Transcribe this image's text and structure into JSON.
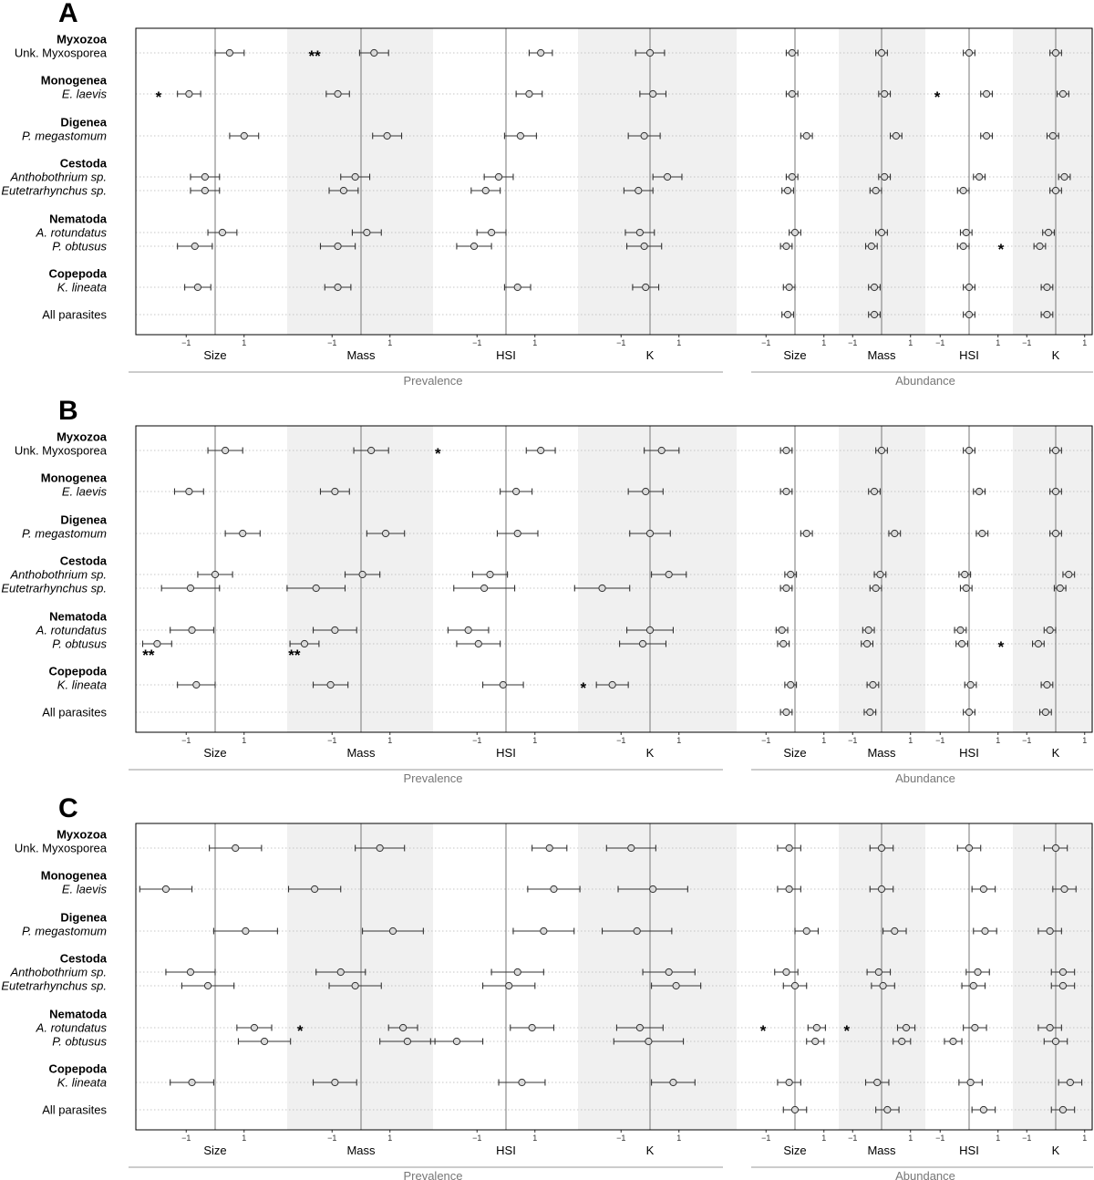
{
  "figure": {
    "groups": [
      "Myxozoa",
      "Monogenea",
      "Digenea",
      "Cestoda",
      "Nematoda",
      "Copepoda"
    ],
    "rows": [
      {
        "group": "Myxozoa",
        "label": "Unk. Myxosporea",
        "italic": false
      },
      {
        "group": "Monogenea",
        "label": "E. laevis",
        "italic": true
      },
      {
        "group": "Digenea",
        "label": "P. megastomum",
        "italic": true
      },
      {
        "group": "Cestoda",
        "label": "Anthobothrium sp.",
        "italic": true
      },
      {
        "group": "Cestoda",
        "label": "Eutetrarhynchus sp.",
        "italic": true
      },
      {
        "group": "Nematoda",
        "label": "A. rotundatus",
        "italic": true
      },
      {
        "group": "Nematoda",
        "label": "P. obtusus",
        "italic": true
      },
      {
        "group": "Copepoda",
        "label": "K. lineata",
        "italic": true
      },
      {
        "group": "",
        "label": "All parasites",
        "italic": false
      }
    ],
    "predictors": [
      "Size",
      "Mass",
      "HSI",
      "K"
    ],
    "sections": [
      "Prevalence",
      "Abundance"
    ],
    "tick_labels": [
      "−1",
      "1"
    ],
    "colors": {
      "shade": "#f0f0f0",
      "point_fill": "#d9d9d9",
      "stroke": "#333333",
      "zero_line": "#777777"
    }
  },
  "chart_data": [
    {
      "panel": "A",
      "type": "forest",
      "prevalence": {
        "Size": [
          [
            0.5,
            0.5
          ],
          [
            -0.9,
            0.4
          ],
          [
            1.0,
            0.5
          ],
          [
            -0.35,
            0.5
          ],
          [
            -0.35,
            0.5
          ],
          [
            0.25,
            0.5
          ],
          [
            -0.7,
            0.6
          ],
          [
            -0.6,
            0.45
          ],
          null
        ],
        "Mass": [
          [
            0.45,
            0.5
          ],
          [
            -0.8,
            0.4
          ],
          [
            0.9,
            0.5
          ],
          [
            -0.2,
            0.5
          ],
          [
            -0.6,
            0.5
          ],
          [
            0.2,
            0.5
          ],
          [
            -0.8,
            0.6
          ],
          [
            -0.8,
            0.45
          ],
          null
        ],
        "HSI": [
          [
            1.2,
            0.4
          ],
          [
            0.8,
            0.45
          ],
          [
            0.5,
            0.55
          ],
          [
            -0.25,
            0.5
          ],
          [
            -0.7,
            0.5
          ],
          [
            -0.5,
            0.5
          ],
          [
            -1.1,
            0.6
          ],
          [
            0.4,
            0.45
          ],
          null
        ],
        "K": [
          [
            0.0,
            0.5
          ],
          [
            0.1,
            0.45
          ],
          [
            -0.2,
            0.55
          ],
          [
            0.6,
            0.5
          ],
          [
            -0.4,
            0.5
          ],
          [
            -0.35,
            0.5
          ],
          [
            -0.2,
            0.6
          ],
          [
            -0.15,
            0.45
          ],
          null
        ]
      },
      "abundance": {
        "Size": [
          [
            -0.1,
            0.2
          ],
          [
            -0.1,
            0.2
          ],
          [
            0.4,
            0.2
          ],
          [
            -0.1,
            0.2
          ],
          [
            -0.25,
            0.2
          ],
          [
            0.0,
            0.2
          ],
          [
            -0.3,
            0.2
          ],
          [
            -0.2,
            0.2
          ],
          [
            -0.25,
            0.2
          ]
        ],
        "Mass": [
          [
            0.0,
            0.2
          ],
          [
            0.1,
            0.2
          ],
          [
            0.5,
            0.2
          ],
          [
            0.1,
            0.2
          ],
          [
            -0.2,
            0.2
          ],
          [
            0.0,
            0.2
          ],
          [
            -0.35,
            0.2
          ],
          [
            -0.25,
            0.2
          ],
          [
            -0.25,
            0.2
          ]
        ],
        "HSI": [
          [
            0.0,
            0.2
          ],
          [
            0.6,
            0.2
          ],
          [
            0.6,
            0.2
          ],
          [
            0.35,
            0.2
          ],
          [
            -0.2,
            0.2
          ],
          [
            -0.1,
            0.2
          ],
          [
            -0.2,
            0.2
          ],
          [
            0.0,
            0.2
          ],
          [
            0.0,
            0.2
          ]
        ],
        "K": [
          [
            0.0,
            0.2
          ],
          [
            0.25,
            0.2
          ],
          [
            -0.1,
            0.2
          ],
          [
            0.3,
            0.2
          ],
          [
            0.0,
            0.2
          ],
          [
            -0.25,
            0.2
          ],
          [
            -0.55,
            0.2
          ],
          [
            -0.3,
            0.2
          ],
          [
            -0.3,
            0.2
          ]
        ]
      },
      "stars": [
        {
          "section": "prevalence",
          "predictor": "Mass",
          "row": 0,
          "x": -1.6,
          "text": "**"
        },
        {
          "section": "prevalence",
          "predictor": "Size",
          "row": 1,
          "x": -1.95,
          "text": "*"
        },
        {
          "section": "abundance",
          "predictor": "HSI",
          "row": 1,
          "x": -1.1,
          "text": "*"
        },
        {
          "section": "abundance",
          "predictor": "HSI",
          "row": 6,
          "x": 1.1,
          "text": "*"
        }
      ]
    },
    {
      "panel": "B",
      "type": "forest",
      "prevalence": {
        "Size": [
          [
            0.35,
            0.6
          ],
          [
            -0.9,
            0.5
          ],
          [
            0.95,
            0.6
          ],
          [
            0.0,
            0.6
          ],
          [
            -0.85,
            1.0
          ],
          [
            -0.8,
            0.75
          ],
          [
            -2.0,
            0.5
          ],
          [
            -0.65,
            0.65
          ],
          null
        ],
        "Mass": [
          [
            0.35,
            0.6
          ],
          [
            -0.9,
            0.5
          ],
          [
            0.85,
            0.65
          ],
          [
            0.05,
            0.6
          ],
          [
            -1.55,
            1.0
          ],
          [
            -0.9,
            0.75
          ],
          [
            -1.95,
            0.5
          ],
          [
            -1.05,
            0.6
          ],
          null
        ],
        "HSI": [
          [
            1.2,
            0.5
          ],
          [
            0.35,
            0.55
          ],
          [
            0.4,
            0.7
          ],
          [
            -0.55,
            0.6
          ],
          [
            -0.75,
            1.05
          ],
          [
            -1.3,
            0.7
          ],
          [
            -0.95,
            0.75
          ],
          [
            -0.1,
            0.7
          ],
          null
        ],
        "K": [
          [
            0.4,
            0.6
          ],
          [
            -0.15,
            0.6
          ],
          [
            0.0,
            0.7
          ],
          [
            0.65,
            0.6
          ],
          [
            -1.65,
            0.95
          ],
          [
            0.0,
            0.8
          ],
          [
            -0.25,
            0.8
          ],
          [
            -1.3,
            0.55
          ],
          null
        ]
      },
      "abundance": {
        "Size": [
          [
            -0.3,
            0.2
          ],
          [
            -0.3,
            0.2
          ],
          [
            0.4,
            0.2
          ],
          [
            -0.15,
            0.2
          ],
          [
            -0.3,
            0.2
          ],
          [
            -0.45,
            0.2
          ],
          [
            -0.4,
            0.2
          ],
          [
            -0.15,
            0.2
          ],
          [
            -0.3,
            0.2
          ]
        ],
        "Mass": [
          [
            0.0,
            0.2
          ],
          [
            -0.25,
            0.2
          ],
          [
            0.45,
            0.2
          ],
          [
            -0.05,
            0.2
          ],
          [
            -0.2,
            0.2
          ],
          [
            -0.45,
            0.2
          ],
          [
            -0.5,
            0.2
          ],
          [
            -0.3,
            0.2
          ],
          [
            -0.4,
            0.2
          ]
        ],
        "HSI": [
          [
            0.0,
            0.2
          ],
          [
            0.35,
            0.2
          ],
          [
            0.45,
            0.2
          ],
          [
            -0.15,
            0.2
          ],
          [
            -0.1,
            0.2
          ],
          [
            -0.3,
            0.2
          ],
          [
            -0.25,
            0.2
          ],
          [
            0.05,
            0.2
          ],
          [
            0.0,
            0.2
          ]
        ],
        "K": [
          [
            0.0,
            0.2
          ],
          [
            0.0,
            0.2
          ],
          [
            0.0,
            0.2
          ],
          [
            0.45,
            0.2
          ],
          [
            0.15,
            0.2
          ],
          [
            -0.2,
            0.2
          ],
          [
            -0.6,
            0.2
          ],
          [
            -0.3,
            0.2
          ],
          [
            -0.35,
            0.2
          ]
        ]
      },
      "stars": [
        {
          "section": "prevalence",
          "predictor": "Mass",
          "row": 0,
          "x": 2.65,
          "text": "*"
        },
        {
          "section": "prevalence",
          "predictor": "Size",
          "row": 6,
          "x": -2.3,
          "text": "**",
          "below": true
        },
        {
          "section": "prevalence",
          "predictor": "Mass",
          "row": 6,
          "x": -2.3,
          "text": "**",
          "below": true
        },
        {
          "section": "prevalence",
          "predictor": "K",
          "row": 7,
          "x": -2.3,
          "text": "*"
        },
        {
          "section": "abundance",
          "predictor": "HSI",
          "row": 6,
          "x": 1.1,
          "text": "*"
        }
      ]
    },
    {
      "panel": "C",
      "type": "forest",
      "prevalence": {
        "Size": [
          [
            0.7,
            0.9
          ],
          [
            -1.7,
            0.9
          ],
          [
            1.05,
            1.1
          ],
          [
            -0.85,
            0.85
          ],
          [
            -0.25,
            0.9
          ],
          [
            1.35,
            0.6
          ],
          [
            1.7,
            0.9
          ],
          [
            -0.8,
            0.75
          ],
          null
        ],
        "Mass": [
          [
            0.65,
            0.85
          ],
          [
            -1.6,
            0.9
          ],
          [
            1.1,
            1.05
          ],
          [
            -0.7,
            0.85
          ],
          [
            -0.2,
            0.9
          ],
          [
            1.45,
            0.5
          ],
          [
            1.6,
            0.95
          ],
          [
            -0.9,
            0.75
          ],
          null
        ],
        "HSI": [
          [
            1.5,
            0.6
          ],
          [
            1.65,
            0.9
          ],
          [
            1.3,
            1.05
          ],
          [
            0.4,
            0.9
          ],
          [
            0.1,
            0.9
          ],
          [
            0.9,
            0.75
          ],
          [
            -1.7,
            0.9
          ],
          [
            0.55,
            0.8
          ],
          null
        ],
        "K": [
          [
            -0.65,
            0.85
          ],
          [
            0.1,
            1.2
          ],
          [
            -0.45,
            1.2
          ],
          [
            0.65,
            0.9
          ],
          [
            0.9,
            0.85
          ],
          [
            -0.35,
            0.8
          ],
          [
            -0.05,
            1.2
          ],
          [
            0.8,
            0.75
          ],
          null
        ]
      },
      "abundance": {
        "Size": [
          [
            -0.2,
            0.4
          ],
          [
            -0.2,
            0.4
          ],
          [
            0.4,
            0.4
          ],
          [
            -0.3,
            0.4
          ],
          [
            0.0,
            0.4
          ],
          [
            0.75,
            0.3
          ],
          [
            0.7,
            0.3
          ],
          [
            -0.2,
            0.4
          ],
          [
            0.0,
            0.4
          ]
        ],
        "Mass": [
          [
            0.0,
            0.4
          ],
          [
            0.0,
            0.4
          ],
          [
            0.45,
            0.4
          ],
          [
            -0.1,
            0.4
          ],
          [
            0.05,
            0.4
          ],
          [
            0.85,
            0.3
          ],
          [
            0.7,
            0.3
          ],
          [
            -0.15,
            0.4
          ],
          [
            0.2,
            0.4
          ]
        ],
        "HSI": [
          [
            0.0,
            0.4
          ],
          [
            0.5,
            0.4
          ],
          [
            0.55,
            0.4
          ],
          [
            0.3,
            0.4
          ],
          [
            0.15,
            0.4
          ],
          [
            0.2,
            0.4
          ],
          [
            -0.55,
            0.3
          ],
          [
            0.05,
            0.4
          ],
          [
            0.5,
            0.4
          ]
        ],
        "K": [
          [
            0.0,
            0.4
          ],
          [
            0.3,
            0.4
          ],
          [
            -0.2,
            0.4
          ],
          [
            0.25,
            0.4
          ],
          [
            0.25,
            0.4
          ],
          [
            -0.2,
            0.4
          ],
          [
            0.0,
            0.4
          ],
          [
            0.5,
            0.4
          ],
          [
            0.25,
            0.4
          ]
        ]
      },
      "stars": [
        {
          "section": "prevalence",
          "predictor": "Mass",
          "row": 5,
          "x": -2.1,
          "text": "*"
        },
        {
          "section": "abundance",
          "predictor": "Size",
          "row": 5,
          "x": -1.1,
          "text": "*"
        },
        {
          "section": "abundance",
          "predictor": "Mass",
          "row": 5,
          "x": -1.2,
          "text": "*"
        }
      ]
    }
  ]
}
